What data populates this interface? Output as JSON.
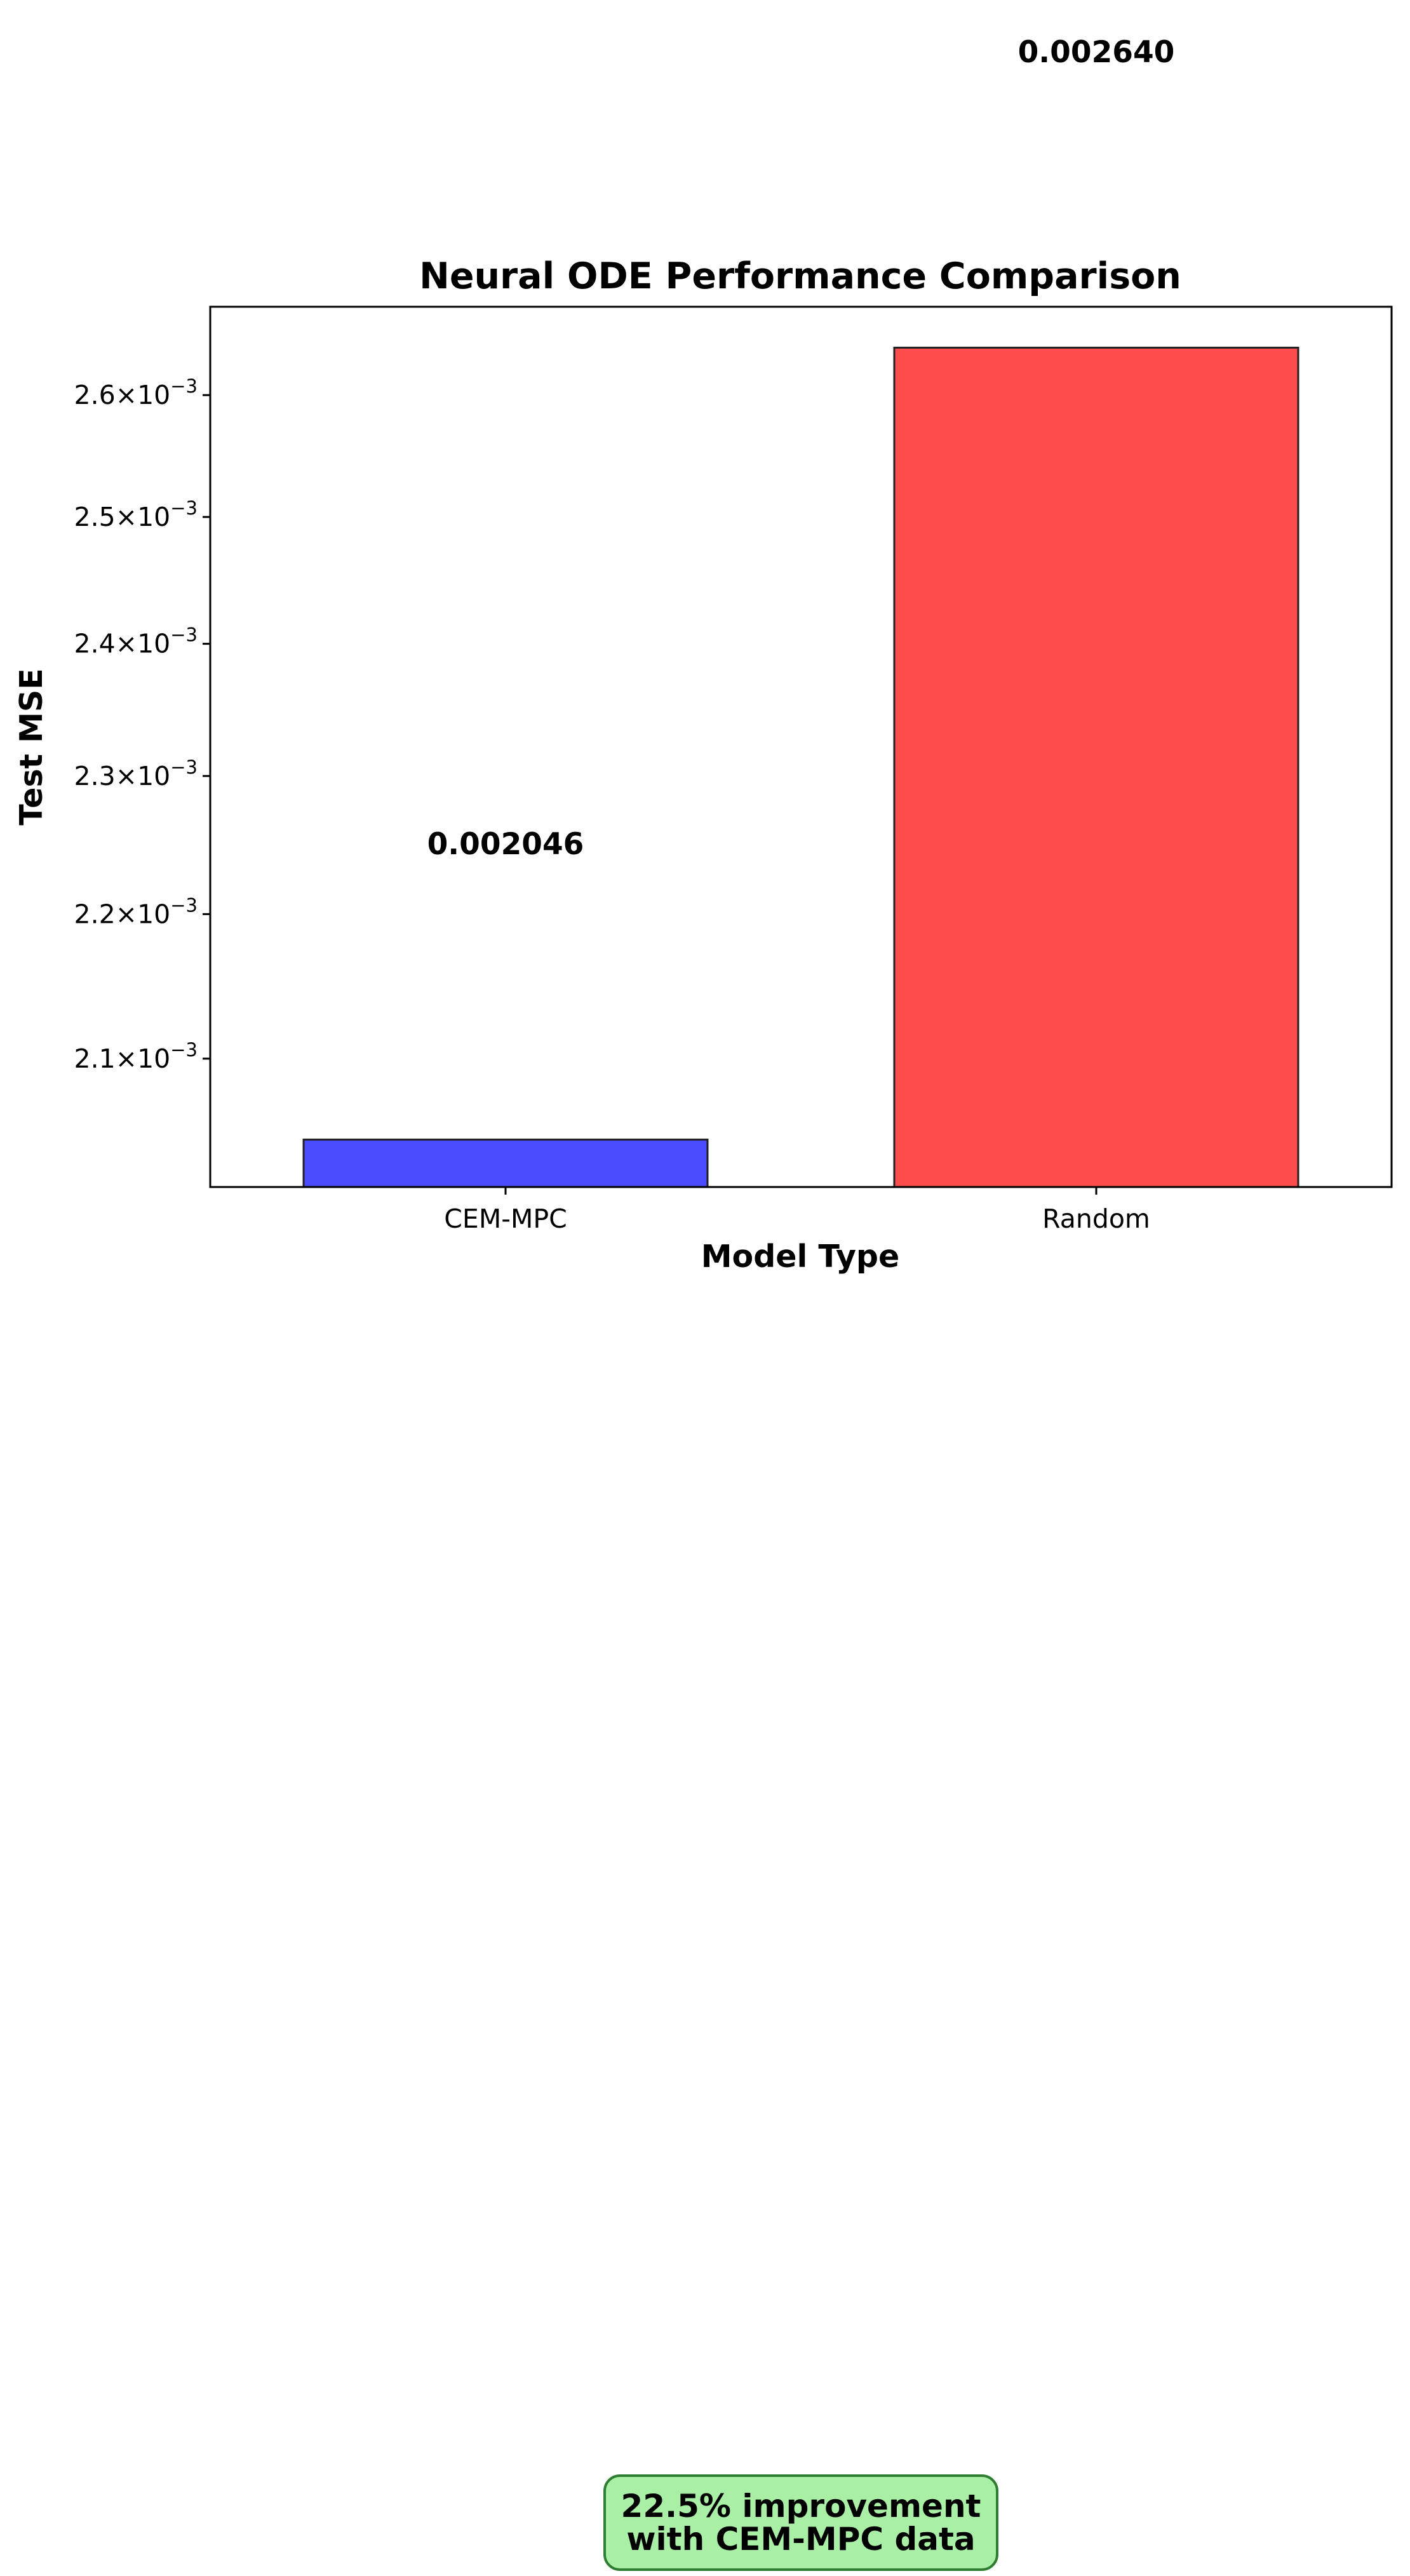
{
  "chart_data": {
    "type": "bar",
    "title": "Neural ODE Performance Comparison",
    "xlabel": "Model Type",
    "ylabel": "Test MSE",
    "yscale": "log",
    "categories": [
      "CEM-MPC",
      "Random"
    ],
    "values": [
      0.002046,
      0.00264
    ],
    "value_labels": [
      "0.002046",
      "0.002640"
    ],
    "bar_colors": [
      "#4b4bff",
      "#ff4d4d"
    ],
    "ylim": [
      0.002015,
      0.002675
    ],
    "yticks": [
      {
        "value": 0.0021,
        "mantissa": "2.1",
        "base": "10",
        "exponent": "−3"
      },
      {
        "value": 0.0022,
        "mantissa": "2.2",
        "base": "10",
        "exponent": "−3"
      },
      {
        "value": 0.0023,
        "mantissa": "2.3",
        "base": "10",
        "exponent": "−3"
      },
      {
        "value": 0.0024,
        "mantissa": "2.4",
        "base": "10",
        "exponent": "−3"
      },
      {
        "value": 0.0025,
        "mantissa": "2.5",
        "base": "10",
        "exponent": "−3"
      },
      {
        "value": 0.0026,
        "mantissa": "2.6",
        "base": "10",
        "exponent": "−3"
      }
    ],
    "grid": false,
    "annotation": {
      "line1": "22.5% improvement",
      "line2": "with CEM-MPC data"
    }
  }
}
